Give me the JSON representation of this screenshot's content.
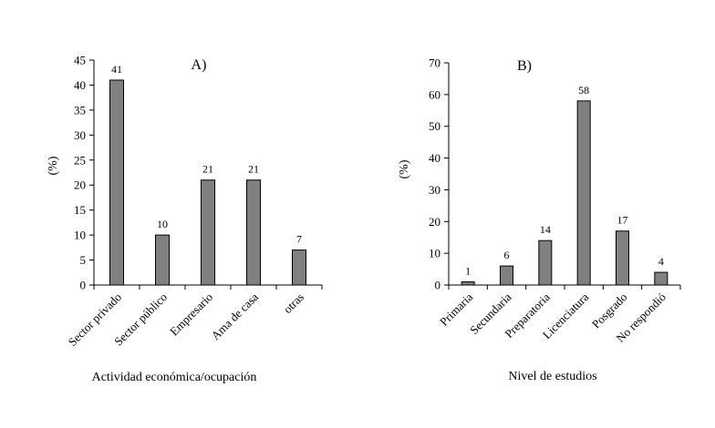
{
  "chart_data": [
    {
      "type": "bar",
      "title": "A)",
      "xlabel": "Actividad económica/ocupación",
      "ylabel": "(%)",
      "ylim": [
        0,
        45
      ],
      "yticks": [
        "0",
        "5",
        "10",
        "15",
        "20",
        "25",
        "30",
        "35",
        "40",
        "45"
      ],
      "categories": [
        "Sector privado",
        "Sector público",
        "Empresario",
        "Ama de casa",
        "otras"
      ],
      "values": [
        41,
        10,
        21,
        21,
        7
      ],
      "data_labels": [
        "41",
        "10",
        "21",
        "21",
        "7"
      ],
      "bar_color": "#808080",
      "grid": false
    },
    {
      "type": "bar",
      "title": "B)",
      "xlabel": "Nivel de estudios",
      "ylabel": "(%)",
      "ylim": [
        0,
        70
      ],
      "yticks": [
        "0",
        "10",
        "20",
        "30",
        "40",
        "50",
        "60",
        "70"
      ],
      "categories": [
        "Primaria",
        "Secundaria",
        "Preparatoria",
        "Licenciatura",
        "Posgrado",
        "No respondió"
      ],
      "values": [
        1,
        6,
        14,
        58,
        17,
        4
      ],
      "data_labels": [
        "1",
        "6",
        "14",
        "58",
        "17",
        "4"
      ],
      "bar_color": "#808080",
      "grid": false
    }
  ]
}
